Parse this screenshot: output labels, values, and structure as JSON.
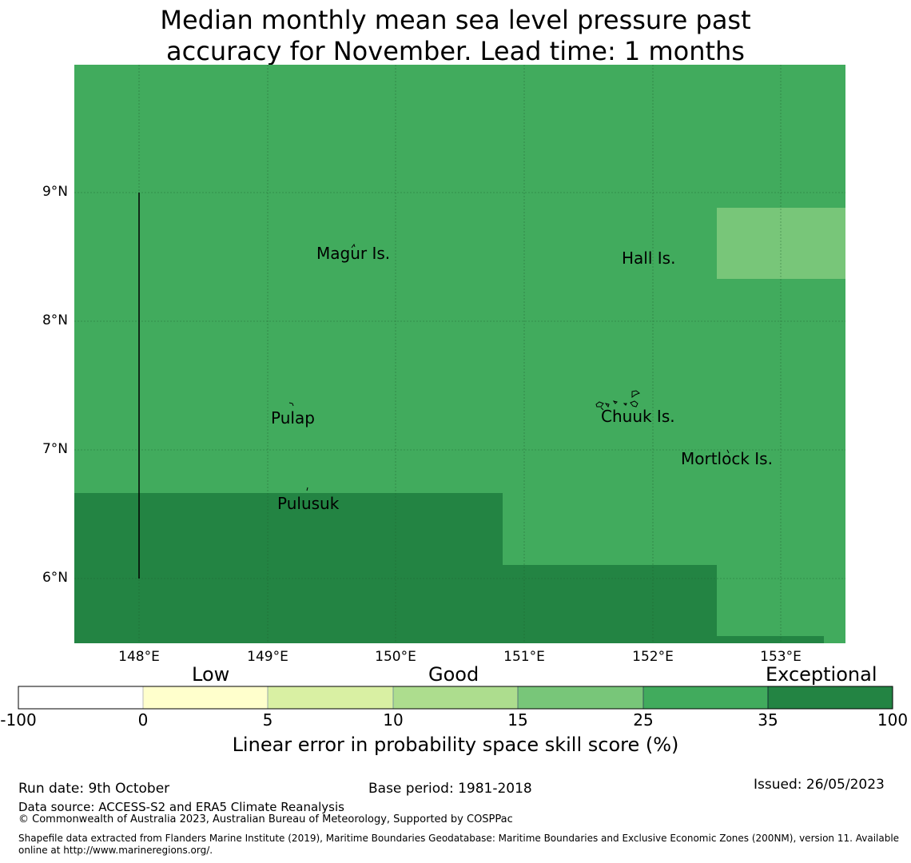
{
  "title": "Median monthly mean sea level pressure past\naccuracy for November. Lead time: 1 months",
  "map": {
    "lat_labels": [
      "9°N",
      "8°N",
      "7°N",
      "6°N"
    ],
    "lon_labels": [
      "148°E",
      "149°E",
      "150°E",
      "151°E",
      "152°E",
      "153°E"
    ],
    "places": [
      "Magur Is.",
      "Hall Is.",
      "Pulap",
      "Chuuk Is.",
      "Mortlock Is.",
      "Pulusuk"
    ],
    "colors": {
      "skill_25_35": "#41ab5d",
      "skill_35_100": "#238443",
      "skill_15_25": "#78c679"
    }
  },
  "legend": {
    "categories": [
      "Low",
      "Good",
      "Exceptional"
    ],
    "ticks": [
      "-100",
      "0",
      "5",
      "10",
      "15",
      "25",
      "35",
      "100"
    ],
    "colors": [
      "#ffffff",
      "#ffffcc",
      "#d9f0a3",
      "#addd8e",
      "#78c679",
      "#41ab5d",
      "#238443"
    ],
    "label": "Linear error in probability space skill score (%)"
  },
  "footer": {
    "run_date": "Run date: 9th October",
    "base_period": "Base period: 1981-2018",
    "issued": "Issued: 26/05/2023",
    "data_source": "Data source: ACCESS-S2 and ERA5 Climate Reanalysis",
    "copyright": "© Commonwealth of Australia 2023, Australian Bureau of Meteorology, Supported by COSPPac",
    "shapefile": "Shapefile data extracted from Flanders Marine Institute (2019), Maritime Boundaries Geodatabase: Maritime Boundaries and Exclusive Economic Zones (200NM), version 11. Available online at http://www.marineregions.org/."
  }
}
